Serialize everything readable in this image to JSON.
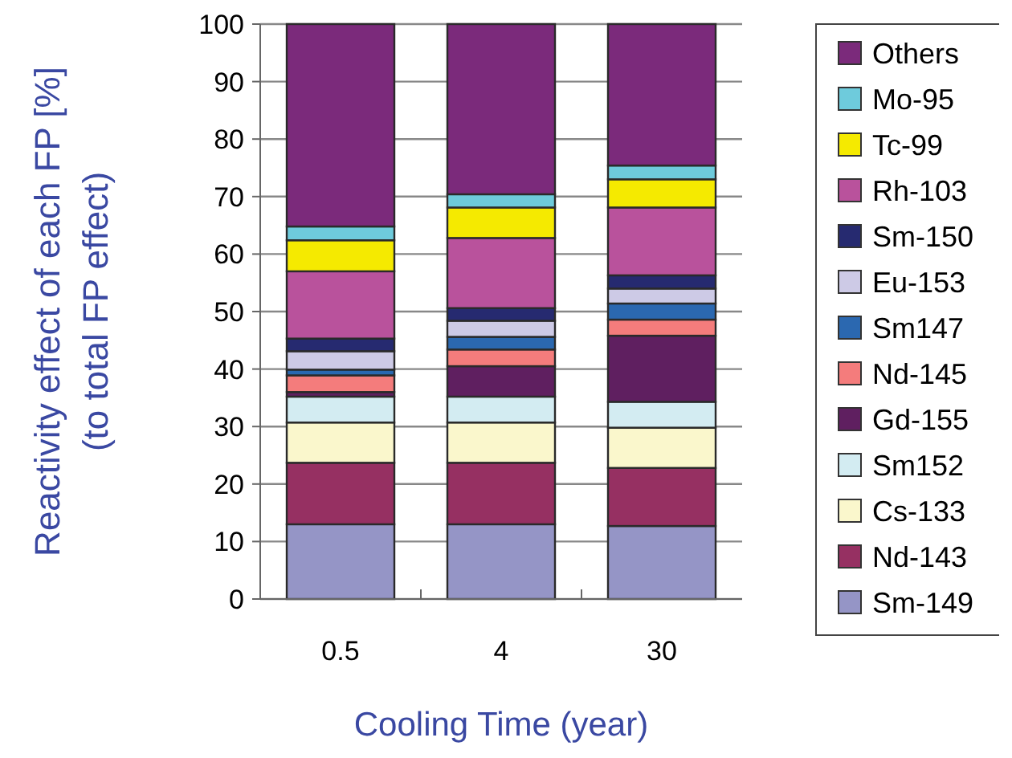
{
  "chart_data": {
    "type": "bar",
    "stacked": true,
    "xlabel": "Cooling Time (year)",
    "ylabel": "Reactivity effect of each  FP [%]\n(to total FP effect)",
    "categories": [
      "0.5",
      "4",
      "30"
    ],
    "ylim": [
      0,
      100
    ],
    "yticks": [
      0,
      10,
      20,
      30,
      40,
      50,
      60,
      70,
      80,
      90,
      100
    ],
    "grid": "y",
    "legend": "right",
    "series": [
      {
        "name": "Sm-149",
        "color": "#9595c6",
        "values": [
          13.0,
          13.0,
          12.7
        ]
      },
      {
        "name": "Nd-143",
        "color": "#963062",
        "values": [
          10.7,
          10.7,
          10.1
        ]
      },
      {
        "name": "Cs-133",
        "color": "#faf7cc",
        "values": [
          7.0,
          7.0,
          7.0
        ]
      },
      {
        "name": "Sm152",
        "color": "#d3ecf2",
        "values": [
          4.5,
          4.5,
          4.5
        ]
      },
      {
        "name": "Gd-155",
        "color": "#5f1f60",
        "values": [
          0.8,
          5.3,
          11.5
        ]
      },
      {
        "name": "Nd-145",
        "color": "#f47c7c",
        "values": [
          2.9,
          2.9,
          2.8
        ]
      },
      {
        "name": "Sm147",
        "color": "#2b68b0",
        "values": [
          1.0,
          2.2,
          2.8
        ]
      },
      {
        "name": "Eu-153",
        "color": "#cdcae6",
        "values": [
          3.2,
          2.8,
          2.6
        ]
      },
      {
        "name": "Sm-150",
        "color": "#262a70",
        "values": [
          2.2,
          2.2,
          2.3
        ]
      },
      {
        "name": "Rh-103",
        "color": "#b9529c",
        "values": [
          11.7,
          12.2,
          11.8
        ]
      },
      {
        "name": "Tc-99",
        "color": "#f5ea00",
        "values": [
          5.4,
          5.3,
          4.9
        ]
      },
      {
        "name": "Mo-95",
        "color": "#6ecbdc",
        "values": [
          2.4,
          2.3,
          2.4
        ]
      },
      {
        "name": "Others",
        "color": "#7b2a7b",
        "values": [
          35.2,
          29.6,
          24.6
        ]
      }
    ]
  }
}
